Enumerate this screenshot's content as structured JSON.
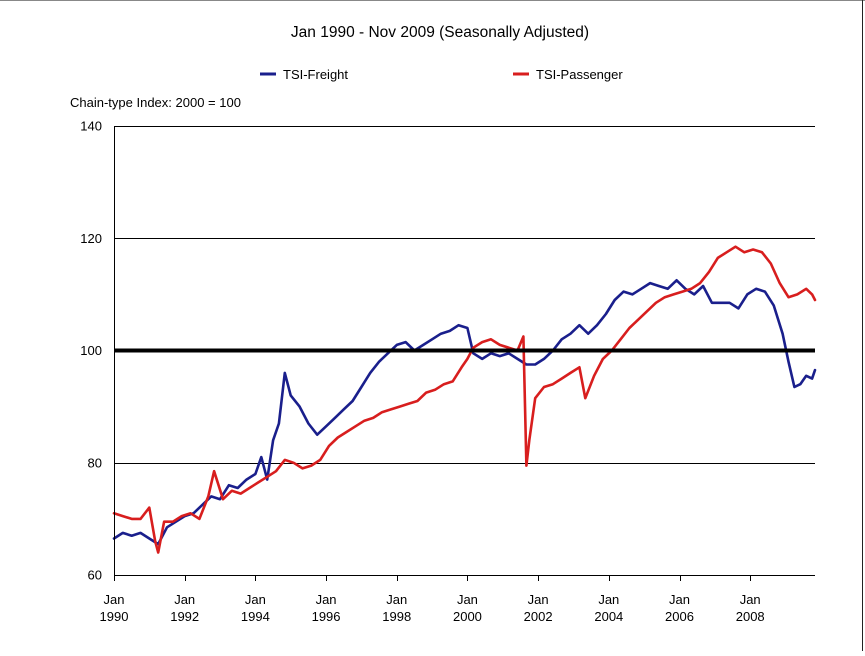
{
  "chart_data": {
    "type": "line",
    "title": "Jan 1990 - Nov 2009 (Seasonally Adjusted)",
    "ylabel": "Chain-type Index: 2000 = 100",
    "xlabel": "",
    "ylim": [
      60,
      140
    ],
    "xlim": [
      "1990-01",
      "2009-11"
    ],
    "yticks": [
      60,
      80,
      100,
      120,
      140
    ],
    "xtick_top": [
      "Jan",
      "Jan",
      "Jan",
      "Jan",
      "Jan",
      "Jan",
      "Jan",
      "Jan",
      "Jan",
      "Jan"
    ],
    "xtick_bottom": [
      "1990",
      "1992",
      "1994",
      "1996",
      "1998",
      "2000",
      "2002",
      "2004",
      "2006",
      "2008"
    ],
    "xtick_dates": [
      "1990-01",
      "1992-01",
      "1994-01",
      "1996-01",
      "1998-01",
      "2000-01",
      "2002-01",
      "2004-01",
      "2006-01",
      "2008-01"
    ],
    "grid": true,
    "legend": "top",
    "reference_line": {
      "y": 100,
      "color": "#000000"
    },
    "series": [
      {
        "name": "TSI-Freight",
        "color": "#1a1f8c",
        "points": [
          [
            "1990-01",
            66.5
          ],
          [
            "1990-04",
            67.5
          ],
          [
            "1990-07",
            67.0
          ],
          [
            "1990-10",
            67.5
          ],
          [
            "1991-01",
            66.5
          ],
          [
            "1991-04",
            65.5
          ],
          [
            "1991-07",
            68.5
          ],
          [
            "1991-10",
            69.5
          ],
          [
            "1992-01",
            70.5
          ],
          [
            "1992-04",
            71.0
          ],
          [
            "1992-07",
            72.5
          ],
          [
            "1992-10",
            74.0
          ],
          [
            "1993-01",
            73.5
          ],
          [
            "1993-04",
            76.0
          ],
          [
            "1993-07",
            75.5
          ],
          [
            "1993-10",
            77.0
          ],
          [
            "1994-01",
            78.0
          ],
          [
            "1994-03",
            81.0
          ],
          [
            "1994-05",
            77.0
          ],
          [
            "1994-07",
            84.0
          ],
          [
            "1994-09",
            87.0
          ],
          [
            "1994-11",
            96.0
          ],
          [
            "1995-01",
            92.0
          ],
          [
            "1995-04",
            90.0
          ],
          [
            "1995-07",
            87.0
          ],
          [
            "1995-10",
            85.0
          ],
          [
            "1996-01",
            86.5
          ],
          [
            "1996-04",
            88.0
          ],
          [
            "1996-07",
            89.5
          ],
          [
            "1996-10",
            91.0
          ],
          [
            "1997-01",
            93.5
          ],
          [
            "1997-04",
            96.0
          ],
          [
            "1997-07",
            98.0
          ],
          [
            "1997-10",
            99.5
          ],
          [
            "1998-01",
            101.0
          ],
          [
            "1998-04",
            101.5
          ],
          [
            "1998-07",
            100.0
          ],
          [
            "1998-10",
            101.0
          ],
          [
            "1999-01",
            102.0
          ],
          [
            "1999-04",
            103.0
          ],
          [
            "1999-07",
            103.5
          ],
          [
            "1999-10",
            104.5
          ],
          [
            "2000-01",
            104.0
          ],
          [
            "2000-03",
            99.5
          ],
          [
            "2000-06",
            98.5
          ],
          [
            "2000-09",
            99.5
          ],
          [
            "2000-12",
            99.0
          ],
          [
            "2001-03",
            99.5
          ],
          [
            "2001-06",
            98.5
          ],
          [
            "2001-09",
            97.5
          ],
          [
            "2001-12",
            97.5
          ],
          [
            "2002-03",
            98.5
          ],
          [
            "2002-06",
            100.0
          ],
          [
            "2002-09",
            102.0
          ],
          [
            "2002-12",
            103.0
          ],
          [
            "2003-03",
            104.5
          ],
          [
            "2003-06",
            103.0
          ],
          [
            "2003-09",
            104.5
          ],
          [
            "2003-12",
            106.5
          ],
          [
            "2004-03",
            109.0
          ],
          [
            "2004-06",
            110.5
          ],
          [
            "2004-09",
            110.0
          ],
          [
            "2004-12",
            111.0
          ],
          [
            "2005-03",
            112.0
          ],
          [
            "2005-06",
            111.5
          ],
          [
            "2005-09",
            111.0
          ],
          [
            "2005-12",
            112.5
          ],
          [
            "2006-03",
            111.0
          ],
          [
            "2006-06",
            110.0
          ],
          [
            "2006-09",
            111.5
          ],
          [
            "2006-12",
            108.5
          ],
          [
            "2007-03",
            108.5
          ],
          [
            "2007-06",
            108.5
          ],
          [
            "2007-09",
            107.5
          ],
          [
            "2007-12",
            110.0
          ],
          [
            "2008-03",
            111.0
          ],
          [
            "2008-06",
            110.5
          ],
          [
            "2008-09",
            108.0
          ],
          [
            "2008-12",
            103.0
          ],
          [
            "2009-02",
            98.0
          ],
          [
            "2009-04",
            93.5
          ],
          [
            "2009-06",
            94.0
          ],
          [
            "2009-08",
            95.5
          ],
          [
            "2009-10",
            95.0
          ],
          [
            "2009-11",
            96.5
          ]
        ]
      },
      {
        "name": "TSI-Passenger",
        "color": "#d81e1e",
        "points": [
          [
            "1990-01",
            71.0
          ],
          [
            "1990-04",
            70.5
          ],
          [
            "1990-07",
            70.0
          ],
          [
            "1990-10",
            70.0
          ],
          [
            "1991-01",
            72.0
          ],
          [
            "1991-03",
            66.0
          ],
          [
            "1991-04",
            64.0
          ],
          [
            "1991-06",
            69.5
          ],
          [
            "1991-09",
            69.5
          ],
          [
            "1991-12",
            70.5
          ],
          [
            "1992-03",
            71.0
          ],
          [
            "1992-06",
            70.0
          ],
          [
            "1992-09",
            74.0
          ],
          [
            "1992-11",
            78.5
          ],
          [
            "1993-02",
            73.5
          ],
          [
            "1993-05",
            75.0
          ],
          [
            "1993-08",
            74.5
          ],
          [
            "1993-11",
            75.5
          ],
          [
            "1994-02",
            76.5
          ],
          [
            "1994-05",
            77.5
          ],
          [
            "1994-08",
            78.5
          ],
          [
            "1994-11",
            80.5
          ],
          [
            "1995-02",
            80.0
          ],
          [
            "1995-05",
            79.0
          ],
          [
            "1995-08",
            79.5
          ],
          [
            "1995-11",
            80.5
          ],
          [
            "1996-02",
            83.0
          ],
          [
            "1996-05",
            84.5
          ],
          [
            "1996-08",
            85.5
          ],
          [
            "1996-11",
            86.5
          ],
          [
            "1997-02",
            87.5
          ],
          [
            "1997-05",
            88.0
          ],
          [
            "1997-08",
            89.0
          ],
          [
            "1997-11",
            89.5
          ],
          [
            "1998-02",
            90.0
          ],
          [
            "1998-05",
            90.5
          ],
          [
            "1998-08",
            91.0
          ],
          [
            "1998-11",
            92.5
          ],
          [
            "1999-02",
            93.0
          ],
          [
            "1999-05",
            94.0
          ],
          [
            "1999-08",
            94.5
          ],
          [
            "1999-11",
            97.0
          ],
          [
            "2000-01",
            98.5
          ],
          [
            "2000-03",
            100.5
          ],
          [
            "2000-06",
            101.5
          ],
          [
            "2000-09",
            102.0
          ],
          [
            "2000-12",
            101.0
          ],
          [
            "2001-03",
            100.5
          ],
          [
            "2001-06",
            100.0
          ],
          [
            "2001-08",
            102.5
          ],
          [
            "2001-09",
            79.5
          ],
          [
            "2001-10",
            84.0
          ],
          [
            "2001-12",
            91.5
          ],
          [
            "2002-03",
            93.5
          ],
          [
            "2002-06",
            94.0
          ],
          [
            "2002-09",
            95.0
          ],
          [
            "2002-12",
            96.0
          ],
          [
            "2003-03",
            97.0
          ],
          [
            "2003-05",
            91.5
          ],
          [
            "2003-08",
            95.5
          ],
          [
            "2003-11",
            98.5
          ],
          [
            "2004-02",
            100.0
          ],
          [
            "2004-05",
            102.0
          ],
          [
            "2004-08",
            104.0
          ],
          [
            "2004-11",
            105.5
          ],
          [
            "2005-02",
            107.0
          ],
          [
            "2005-05",
            108.5
          ],
          [
            "2005-08",
            109.5
          ],
          [
            "2005-11",
            110.0
          ],
          [
            "2006-02",
            110.5
          ],
          [
            "2006-05",
            111.0
          ],
          [
            "2006-08",
            112.0
          ],
          [
            "2006-11",
            114.0
          ],
          [
            "2007-02",
            116.5
          ],
          [
            "2007-05",
            117.5
          ],
          [
            "2007-08",
            118.5
          ],
          [
            "2007-11",
            117.5
          ],
          [
            "2008-02",
            118.0
          ],
          [
            "2008-05",
            117.5
          ],
          [
            "2008-08",
            115.5
          ],
          [
            "2008-11",
            112.0
          ],
          [
            "2009-02",
            109.5
          ],
          [
            "2009-05",
            110.0
          ],
          [
            "2009-08",
            111.0
          ],
          [
            "2009-10",
            110.0
          ],
          [
            "2009-11",
            109.0
          ]
        ]
      }
    ]
  }
}
